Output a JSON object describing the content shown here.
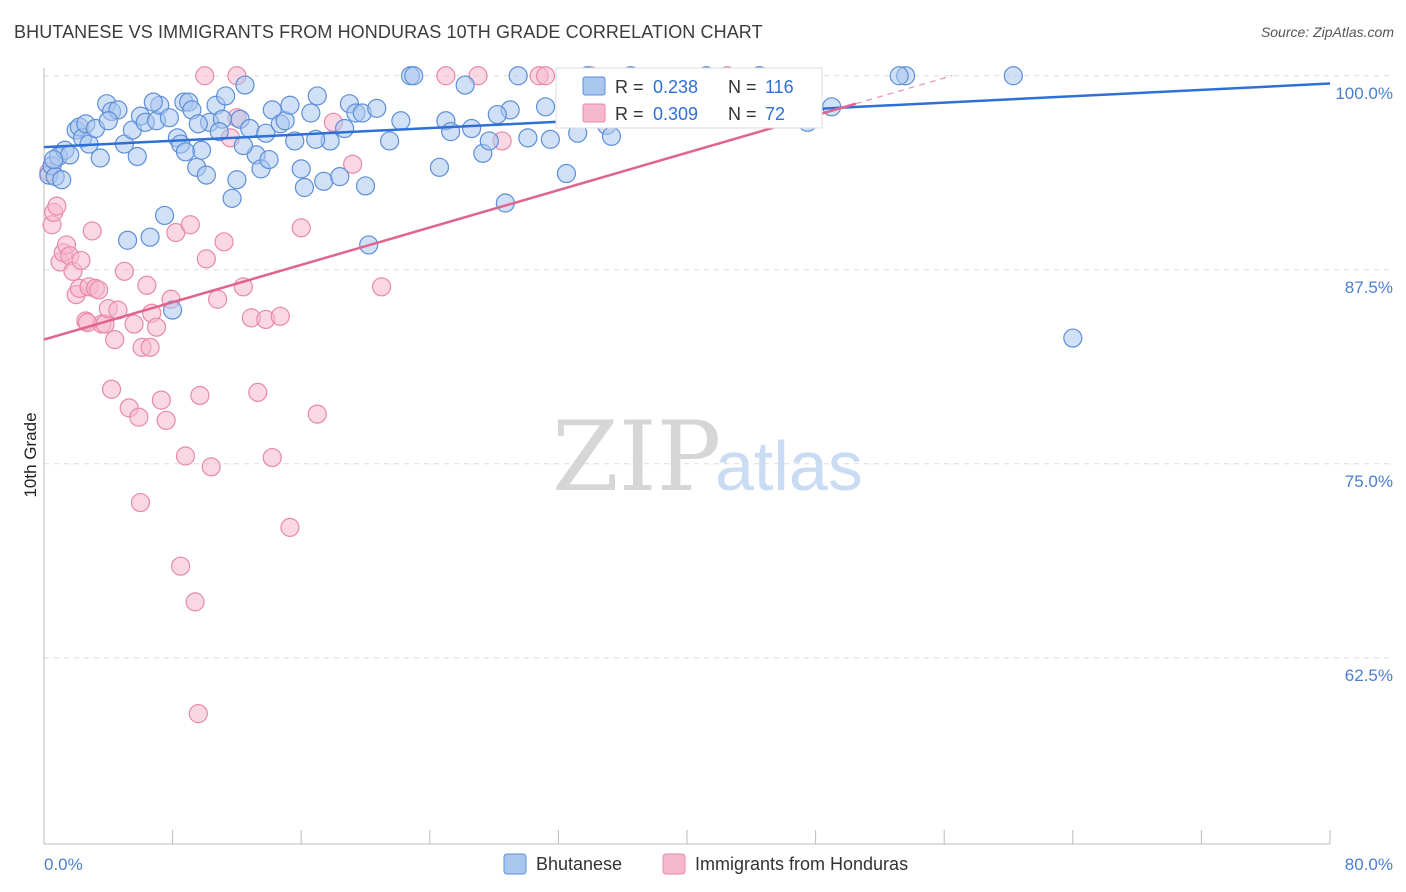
{
  "header": {
    "title": "BHUTANESE VS IMMIGRANTS FROM HONDURAS 10TH GRADE CORRELATION CHART",
    "source": "Source: ZipAtlas.com"
  },
  "watermark": {
    "zip": "ZIP",
    "atlas": "atlas"
  },
  "colors": {
    "blue_fill": "#a9c6ef",
    "blue_stroke": "#5d8fd8",
    "blue_line": "#2f6fd6",
    "pink_fill": "#f6b8cc",
    "pink_stroke": "#e889a8",
    "pink_line": "#e0648e",
    "grid": "#dcdcdc",
    "axis_text": "#4a7fd0"
  },
  "stats": {
    "blue": {
      "r_label": "R =",
      "r_value": "0.238",
      "n_label": "N =",
      "n_value": "116"
    },
    "pink": {
      "r_label": "R =",
      "r_value": "0.309",
      "n_label": "N =",
      "n_value": "72"
    }
  },
  "chart_data": {
    "type": "scatter",
    "title": "BHUTANESE VS IMMIGRANTS FROM HONDURAS 10TH GRADE CORRELATION CHART",
    "xlabel": "",
    "ylabel": "10th Grade",
    "xlim": [
      0,
      80
    ],
    "ylim": [
      50.5,
      100.5
    ],
    "x_tick_labels": [
      "0.0%",
      "80.0%"
    ],
    "y_ticks": [
      100,
      87.5,
      75,
      62.5
    ],
    "y_tick_labels": [
      "100.0%",
      "87.5%",
      "75.0%",
      "62.5%"
    ],
    "grid": true,
    "legend": "bottom-center",
    "series": [
      {
        "name": "Bhutanese",
        "color": "#5d8fd8",
        "trend": {
          "x0": 0,
          "y0": 95.4,
          "x1": 80,
          "y1": 99.5
        },
        "points": [
          [
            0.3,
            93.6
          ],
          [
            0.5,
            94.2
          ],
          [
            0.7,
            93.5
          ],
          [
            0.9,
            94.8
          ],
          [
            1.1,
            93.3
          ],
          [
            1.3,
            95.2
          ],
          [
            1.6,
            94.9
          ],
          [
            2.0,
            96.5
          ],
          [
            2.2,
            96.7
          ],
          [
            2.4,
            96.0
          ],
          [
            2.6,
            96.9
          ],
          [
            2.8,
            95.6
          ],
          [
            3.2,
            96.6
          ],
          [
            3.5,
            94.7
          ],
          [
            3.9,
            98.2
          ],
          [
            4.2,
            97.7
          ],
          [
            4.6,
            97.8
          ],
          [
            5.0,
            95.6
          ],
          [
            5.2,
            89.4
          ],
          [
            5.5,
            96.5
          ],
          [
            5.8,
            94.8
          ],
          [
            6.0,
            97.4
          ],
          [
            6.3,
            97.0
          ],
          [
            6.6,
            89.6
          ],
          [
            7.0,
            97.1
          ],
          [
            7.2,
            98.1
          ],
          [
            7.5,
            91.0
          ],
          [
            7.8,
            97.3
          ],
          [
            8.0,
            84.9
          ],
          [
            8.3,
            96.0
          ],
          [
            8.5,
            95.6
          ],
          [
            8.7,
            98.3
          ],
          [
            9.0,
            98.3
          ],
          [
            9.2,
            97.8
          ],
          [
            9.5,
            94.1
          ],
          [
            9.8,
            95.2
          ],
          [
            10.1,
            93.6
          ],
          [
            10.3,
            97.0
          ],
          [
            10.7,
            98.1
          ],
          [
            11.1,
            97.2
          ],
          [
            11.3,
            98.7
          ],
          [
            11.7,
            92.1
          ],
          [
            12.0,
            93.3
          ],
          [
            12.2,
            97.2
          ],
          [
            12.5,
            99.4
          ],
          [
            12.8,
            96.6
          ],
          [
            13.2,
            94.9
          ],
          [
            13.5,
            94.0
          ],
          [
            13.8,
            96.3
          ],
          [
            14.2,
            97.8
          ],
          [
            14.7,
            96.9
          ],
          [
            15.0,
            97.1
          ],
          [
            15.3,
            98.1
          ],
          [
            15.6,
            95.8
          ],
          [
            16.0,
            94.0
          ],
          [
            16.2,
            92.8
          ],
          [
            16.6,
            97.6
          ],
          [
            17.0,
            98.7
          ],
          [
            17.4,
            93.2
          ],
          [
            17.8,
            95.8
          ],
          [
            18.4,
            93.5
          ],
          [
            18.7,
            96.6
          ],
          [
            19.0,
            98.2
          ],
          [
            19.4,
            97.6
          ],
          [
            19.8,
            97.6
          ],
          [
            20.2,
            89.1
          ],
          [
            20.7,
            97.9
          ],
          [
            21.5,
            95.8
          ],
          [
            22.8,
            100.0
          ],
          [
            24.6,
            94.1
          ],
          [
            25.0,
            97.1
          ],
          [
            25.3,
            96.4
          ],
          [
            26.2,
            99.4
          ],
          [
            27.3,
            95.0
          ],
          [
            27.7,
            95.8
          ],
          [
            28.7,
            91.8
          ],
          [
            29.0,
            97.8
          ],
          [
            29.5,
            100.0
          ],
          [
            30.1,
            96.0
          ],
          [
            31.5,
            95.9
          ],
          [
            32.5,
            93.7
          ],
          [
            33.2,
            96.3
          ],
          [
            34.0,
            98.2
          ],
          [
            35.0,
            96.8
          ],
          [
            35.3,
            96.1
          ],
          [
            36.5,
            100.0
          ],
          [
            37.5,
            98.8
          ],
          [
            38.7,
            98.5
          ],
          [
            40.0,
            97.5
          ],
          [
            41.2,
            100.0
          ],
          [
            44.5,
            100.0
          ],
          [
            47.5,
            97.0
          ],
          [
            49.0,
            98.0
          ],
          [
            53.6,
            100.0
          ],
          [
            53.2,
            100.0
          ],
          [
            60.3,
            100.0
          ],
          [
            64.0,
            83.1
          ],
          [
            23.0,
            100.0
          ],
          [
            33.8,
            100.0
          ],
          [
            0.6,
            94.6
          ],
          [
            8.8,
            95.1
          ],
          [
            10.9,
            96.4
          ],
          [
            14.0,
            94.6
          ],
          [
            16.9,
            95.9
          ],
          [
            20.0,
            92.9
          ],
          [
            22.2,
            97.1
          ],
          [
            26.6,
            96.6
          ],
          [
            28.2,
            97.5
          ],
          [
            31.2,
            98.0
          ],
          [
            34.8,
            97.9
          ],
          [
            37.0,
            98.4
          ],
          [
            42.3,
            97.8
          ],
          [
            4.0,
            97.1
          ],
          [
            6.8,
            98.3
          ],
          [
            9.6,
            96.9
          ],
          [
            12.4,
            95.5
          ]
        ]
      },
      {
        "name": "Immigrants from Honduras",
        "color": "#e889a8",
        "trend": {
          "x0": 0,
          "y0": 83.0,
          "x1": 50.5,
          "y1": 98.2
        },
        "points": [
          [
            0.3,
            93.8
          ],
          [
            0.5,
            90.4
          ],
          [
            0.6,
            91.2
          ],
          [
            0.8,
            91.6
          ],
          [
            1.0,
            88.0
          ],
          [
            1.2,
            88.6
          ],
          [
            1.4,
            89.1
          ],
          [
            1.6,
            88.4
          ],
          [
            1.8,
            87.4
          ],
          [
            2.0,
            85.9
          ],
          [
            2.2,
            86.3
          ],
          [
            2.6,
            84.2
          ],
          [
            2.8,
            86.4
          ],
          [
            3.0,
            90.0
          ],
          [
            3.2,
            86.3
          ],
          [
            3.4,
            86.2
          ],
          [
            3.6,
            84.0
          ],
          [
            3.8,
            84.0
          ],
          [
            4.0,
            85.0
          ],
          [
            4.2,
            79.8
          ],
          [
            4.4,
            83.0
          ],
          [
            4.6,
            84.9
          ],
          [
            5.0,
            87.4
          ],
          [
            5.3,
            78.6
          ],
          [
            5.6,
            84.0
          ],
          [
            5.9,
            78.0
          ],
          [
            6.1,
            82.5
          ],
          [
            6.4,
            86.5
          ],
          [
            6.7,
            84.7
          ],
          [
            7.0,
            83.8
          ],
          [
            7.3,
            79.1
          ],
          [
            7.6,
            77.8
          ],
          [
            7.9,
            85.6
          ],
          [
            8.2,
            89.9
          ],
          [
            8.5,
            68.4
          ],
          [
            8.8,
            75.5
          ],
          [
            9.1,
            90.4
          ],
          [
            9.4,
            66.1
          ],
          [
            9.7,
            79.4
          ],
          [
            10.1,
            88.2
          ],
          [
            10.4,
            74.8
          ],
          [
            10.8,
            85.6
          ],
          [
            11.2,
            89.3
          ],
          [
            11.6,
            96.0
          ],
          [
            12.0,
            97.3
          ],
          [
            12.4,
            86.4
          ],
          [
            12.9,
            84.4
          ],
          [
            13.3,
            79.6
          ],
          [
            13.8,
            84.3
          ],
          [
            14.2,
            75.4
          ],
          [
            14.7,
            84.5
          ],
          [
            15.3,
            70.9
          ],
          [
            16.0,
            90.2
          ],
          [
            17.0,
            78.2
          ],
          [
            18.0,
            97.0
          ],
          [
            19.2,
            94.3
          ],
          [
            21.0,
            86.4
          ],
          [
            25.0,
            100.0
          ],
          [
            27.0,
            100.0
          ],
          [
            28.5,
            95.8
          ],
          [
            30.8,
            100.0
          ],
          [
            31.2,
            100.0
          ],
          [
            34.0,
            100.0
          ],
          [
            42.5,
            100.0
          ],
          [
            44.5,
            100.0
          ],
          [
            10.0,
            100.0
          ],
          [
            12.0,
            100.0
          ],
          [
            6.0,
            72.5
          ],
          [
            9.6,
            58.9
          ],
          [
            2.7,
            84.1
          ],
          [
            6.6,
            82.5
          ],
          [
            2.3,
            88.1
          ]
        ]
      }
    ]
  },
  "legend": {
    "items": [
      {
        "label": "Bhutanese"
      },
      {
        "label": "Immigrants from Honduras"
      }
    ]
  }
}
